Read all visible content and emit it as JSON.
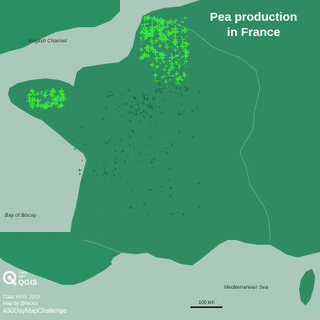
{
  "title": {
    "line1": "Pea production",
    "line2": "in France"
  },
  "labels": {
    "english_channel": "English Channel",
    "bay_of_biscay": "Bay of Biscay",
    "mediterranean_sea": "Mediterranean Sea"
  },
  "credits": {
    "data_source": "Data: RPG, 2019",
    "author": "Map by @lacxra",
    "hashtag": "#30DayMapChallenge"
  },
  "logo": {
    "made_with_line1": "made",
    "made_with_line2": "with",
    "brand": "QGIS"
  },
  "scale": {
    "label": "100 km"
  },
  "colors": {
    "sea": "#a9c9ba",
    "land_france": "#2e8b62",
    "land_neighbors": "#2a8f62",
    "production_high": "#39e639",
    "production_low": "#1f6f3a"
  }
}
